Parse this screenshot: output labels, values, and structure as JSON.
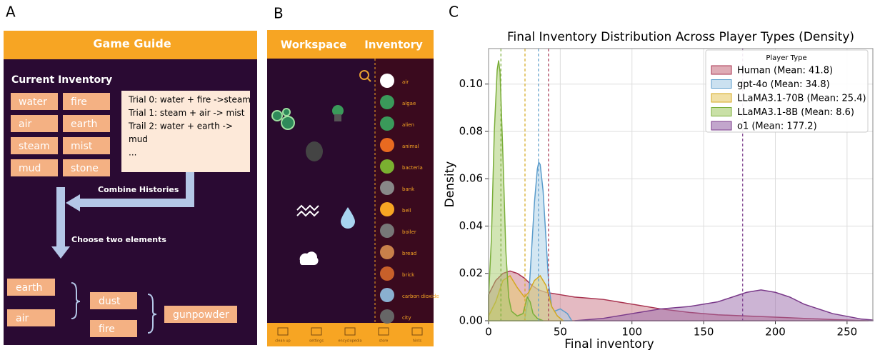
{
  "panel_labels": [
    "A",
    "B",
    "C"
  ],
  "panel_a": {
    "title": "Game Guide",
    "inventory_heading": "Current Inventory",
    "inventory": [
      "water",
      "fire",
      "air",
      "earth",
      "steam",
      "mist",
      "mud",
      "stone"
    ],
    "history": [
      "Trial 0: water + fire ->steam",
      "Trial 1: steam + air -> mist",
      "Trail 2: water + earth ->",
      "mud",
      "..."
    ],
    "arrow_labels": [
      "Combine Histories",
      "Choose two elements"
    ],
    "combination": {
      "first": [
        "earth",
        "air"
      ],
      "second": [
        "dust",
        "fire"
      ],
      "result": "gunpowder"
    }
  },
  "panel_b": {
    "tabs": [
      "Workspace",
      "Inventory"
    ],
    "items": [
      "air",
      "algae",
      "alien",
      "animal",
      "bacteria",
      "bank",
      "bell",
      "boiler",
      "bread",
      "brick",
      "carbon dioxide",
      "city"
    ],
    "toolbar": [
      "clean up",
      "settings",
      "encyclopedia",
      "store",
      "hints"
    ]
  },
  "chart_data": {
    "type": "density",
    "title": "Final Inventory Distribution Across Player Types (Density)",
    "x_label": "Final inventory",
    "y_label": "Density",
    "legend_title": "Player Type",
    "legend_position": "upper right",
    "grid": true,
    "xlim": [
      0,
      268
    ],
    "ylim": [
      0,
      0.115
    ],
    "xticks": [
      0,
      50,
      100,
      150,
      200,
      250
    ],
    "yticks": [
      {
        "value": 0,
        "label": "0.00"
      },
      {
        "value": 0.02,
        "label": "0.02"
      },
      {
        "value": 0.04,
        "label": "0.04"
      },
      {
        "value": 0.06,
        "label": "0.06"
      },
      {
        "value": 0.08,
        "label": "0.08"
      },
      {
        "value": 0.1,
        "label": "0.10"
      }
    ],
    "series": [
      {
        "name": "Human (Mean: 41.8)",
        "mean": 41.8,
        "color": "#a8324f",
        "fill": "#c97585",
        "x": [
          0,
          5,
          10,
          15,
          20,
          25,
          30,
          35,
          40,
          50,
          60,
          70,
          80,
          90,
          100,
          120,
          140,
          160,
          180,
          200,
          220,
          240,
          265
        ],
        "values": [
          0.011,
          0.017,
          0.02,
          0.021,
          0.02,
          0.018,
          0.015,
          0.013,
          0.012,
          0.011,
          0.01,
          0.0095,
          0.009,
          0.008,
          0.007,
          0.005,
          0.0035,
          0.0025,
          0.002,
          0.0015,
          0.001,
          0.0005,
          0
        ]
      },
      {
        "name": "gpt-4o (Mean: 34.8)",
        "mean": 34.8,
        "color": "#5b9ccb",
        "fill": "#a8cde6",
        "x": [
          25,
          28,
          30,
          32,
          34,
          35,
          36,
          38,
          40,
          42,
          44,
          46,
          50,
          55,
          58
        ],
        "values": [
          0,
          0.01,
          0.03,
          0.05,
          0.064,
          0.067,
          0.066,
          0.055,
          0.035,
          0.015,
          0.006,
          0.004,
          0.005,
          0.003,
          0
        ]
      },
      {
        "name": "LLaMA3.1-70B (Mean: 25.4)",
        "mean": 25.4,
        "color": "#d4a820",
        "fill": "#e8cc6a",
        "x": [
          0,
          5,
          10,
          15,
          20,
          25,
          28,
          32,
          36,
          40,
          44,
          48,
          52
        ],
        "values": [
          0.002,
          0.008,
          0.017,
          0.019,
          0.014,
          0.01,
          0.012,
          0.017,
          0.019,
          0.015,
          0.006,
          0.002,
          0
        ]
      },
      {
        "name": "LLaMA3.1-8B (Mean: 8.6)",
        "mean": 8.6,
        "color": "#7aae3a",
        "fill": "#a5cc6a",
        "x": [
          0,
          2,
          4,
          6,
          7,
          8,
          10,
          12,
          14,
          16,
          20,
          24,
          27,
          29,
          31,
          34,
          38
        ],
        "values": [
          0.01,
          0.035,
          0.08,
          0.106,
          0.11,
          0.105,
          0.07,
          0.03,
          0.01,
          0.004,
          0.002,
          0.003,
          0.01,
          0.008,
          0.003,
          0.001,
          0
        ]
      },
      {
        "name": "o1 (Mean: 177.2)",
        "mean": 177.2,
        "color": "#7a3a8a",
        "fill": "#9a6aaa",
        "x": [
          60,
          80,
          100,
          120,
          140,
          160,
          170,
          180,
          190,
          200,
          210,
          220,
          240,
          260,
          268
        ],
        "values": [
          0,
          0.001,
          0.003,
          0.005,
          0.006,
          0.008,
          0.01,
          0.012,
          0.013,
          0.012,
          0.01,
          0.007,
          0.003,
          0.0007,
          0.0003
        ]
      }
    ]
  }
}
